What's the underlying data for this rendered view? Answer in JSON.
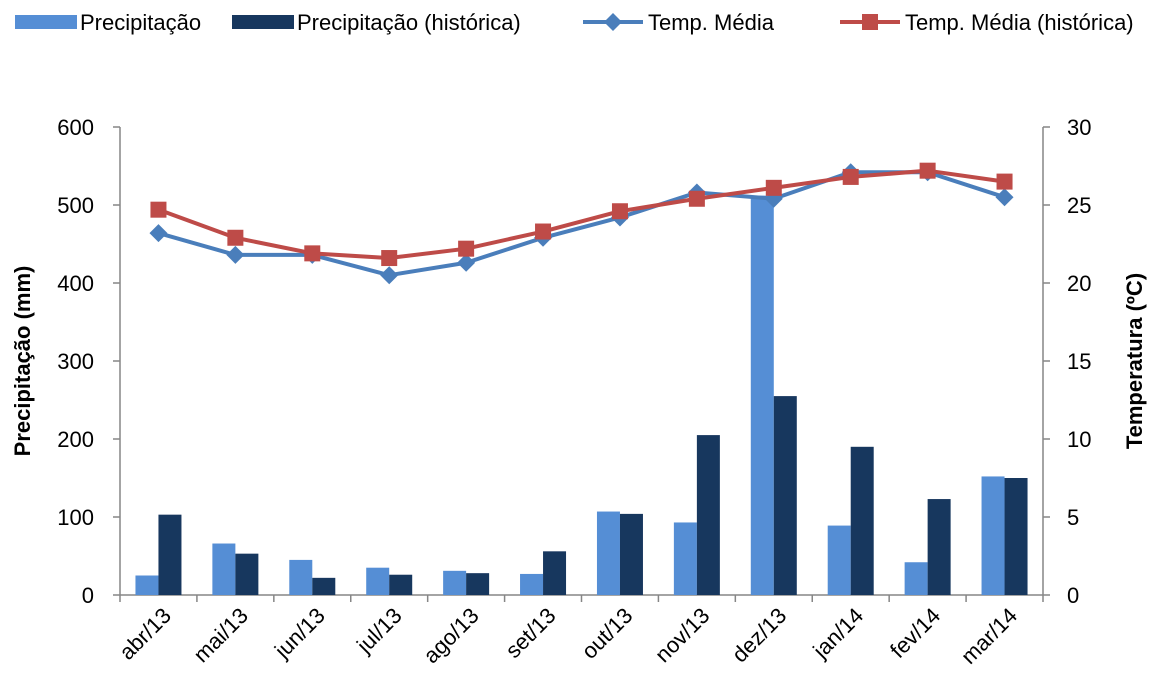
{
  "chart_data": {
    "type": "bar_line",
    "categories": [
      "abr/13",
      "mai/13",
      "jun/13",
      "jul/13",
      "ago/13",
      "set/13",
      "out/13",
      "nov/13",
      "dez/13",
      "jan/14",
      "fev/14",
      "mar/14"
    ],
    "ylabel": "Precipitação (mm)",
    "y2label": "Temperatura (ºC)",
    "ylim": [
      0,
      600
    ],
    "yticks": [
      0,
      100,
      200,
      300,
      400,
      500,
      600
    ],
    "y2lim": [
      0,
      30
    ],
    "y2ticks": [
      0,
      5,
      10,
      15,
      20,
      25,
      30
    ],
    "legend": "top",
    "series": [
      {
        "name": "Precipitação",
        "type": "bar",
        "color": "#558ed5",
        "values": [
          25,
          66,
          45,
          35,
          31,
          27,
          107,
          93,
          512,
          89,
          42,
          152
        ]
      },
      {
        "name": "Precipitação (histórica)",
        "type": "bar",
        "color": "#17375e",
        "values": [
          103,
          53,
          22,
          26,
          28,
          56,
          104,
          205,
          255,
          190,
          123,
          150
        ]
      },
      {
        "name": "Temp. Média",
        "type": "line",
        "marker": "diamond",
        "axis": "y2",
        "color": "#4a7ebb",
        "values": [
          23.2,
          21.8,
          21.8,
          20.5,
          21.3,
          22.9,
          24.2,
          25.8,
          25.4,
          27.1,
          27.1,
          25.5
        ]
      },
      {
        "name": "Temp. Média (histórica)",
        "type": "line",
        "marker": "square",
        "axis": "y2",
        "color": "#be4b48",
        "values": [
          24.7,
          22.9,
          21.9,
          21.6,
          22.2,
          23.3,
          24.6,
          25.4,
          26.1,
          26.8,
          27.2,
          26.5
        ]
      }
    ]
  }
}
